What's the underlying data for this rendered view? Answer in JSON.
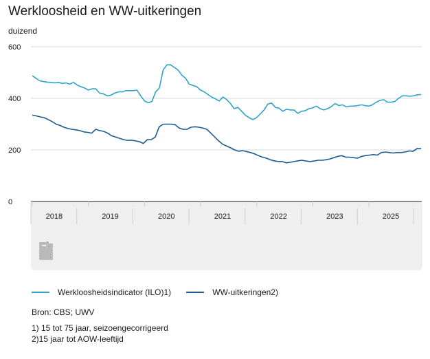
{
  "header": {
    "title": "Werkloosheid en WW-uitkeringen",
    "unit": "duizend"
  },
  "legend": [
    {
      "label": "Werkloosheidsindicator (ILO)1)",
      "color": "#2ea3c7"
    },
    {
      "label": "WW-uitkeringen2)",
      "color": "#1b5a8e"
    }
  ],
  "footer": {
    "source": "Bron: CBS; UWV",
    "notes": [
      "1) 15 tot 75 jaar, seizoengecorrigeerd",
      "2)15 jaar tot AOW-leeftijd"
    ]
  },
  "logo": {
    "icon": "cbs-logo-icon"
  },
  "colors": {
    "panel": "#efefef",
    "grid": "#d9d9d9",
    "axis": "#666666"
  },
  "chart_data": {
    "type": "line",
    "title": "Werkloosheid en WW-uitkeringen",
    "ylabel": "duizend",
    "xlabel": "",
    "ylim": [
      0,
      600
    ],
    "yticks": [
      0,
      200,
      400,
      600
    ],
    "grid": true,
    "legend_position": "bottom",
    "x_period_labels": [
      "2018",
      "2019",
      "2020",
      "2021",
      "2022",
      "2023",
      "2025"
    ],
    "x_frequency": "monthly",
    "series": [
      {
        "name": "Werkloosheidsindicator (ILO)1)",
        "color": "#2ea3c7",
        "values": [
          488,
          478,
          468,
          465,
          463,
          462,
          460,
          462,
          458,
          460,
          455,
          462,
          452,
          445,
          440,
          432,
          437,
          437,
          420,
          418,
          410,
          412,
          420,
          425,
          425,
          430,
          430,
          430,
          432,
          410,
          390,
          383,
          388,
          425,
          440,
          510,
          530,
          530,
          520,
          510,
          490,
          478,
          455,
          450,
          445,
          432,
          425,
          415,
          405,
          398,
          390,
          405,
          395,
          380,
          360,
          365,
          350,
          335,
          325,
          318,
          325,
          340,
          355,
          378,
          382,
          365,
          362,
          350,
          358,
          355,
          355,
          342,
          350,
          352,
          360,
          363,
          370,
          360,
          355,
          360,
          368,
          380,
          372,
          375,
          367,
          370,
          370,
          372,
          375,
          372,
          370,
          375,
          385,
          392,
          395,
          385,
          385,
          388,
          400,
          410,
          410,
          408,
          410,
          414,
          415
        ]
      },
      {
        "name": "WW-uitkeringen2)",
        "color": "#1b5a8e",
        "values": [
          335,
          332,
          328,
          325,
          318,
          310,
          300,
          295,
          288,
          283,
          280,
          278,
          275,
          270,
          268,
          265,
          280,
          275,
          272,
          265,
          255,
          250,
          245,
          240,
          237,
          238,
          235,
          232,
          225,
          240,
          240,
          250,
          290,
          300,
          300,
          300,
          298,
          285,
          280,
          280,
          288,
          290,
          288,
          285,
          280,
          265,
          250,
          235,
          222,
          215,
          208,
          200,
          195,
          197,
          194,
          190,
          185,
          178,
          172,
          168,
          162,
          158,
          155,
          155,
          150,
          152,
          155,
          158,
          160,
          157,
          155,
          157,
          160,
          160,
          162,
          165,
          170,
          175,
          178,
          172,
          172,
          170,
          168,
          175,
          178,
          180,
          182,
          180,
          190,
          192,
          190,
          188,
          190,
          190,
          192,
          196,
          195,
          205,
          206
        ]
      }
    ]
  }
}
